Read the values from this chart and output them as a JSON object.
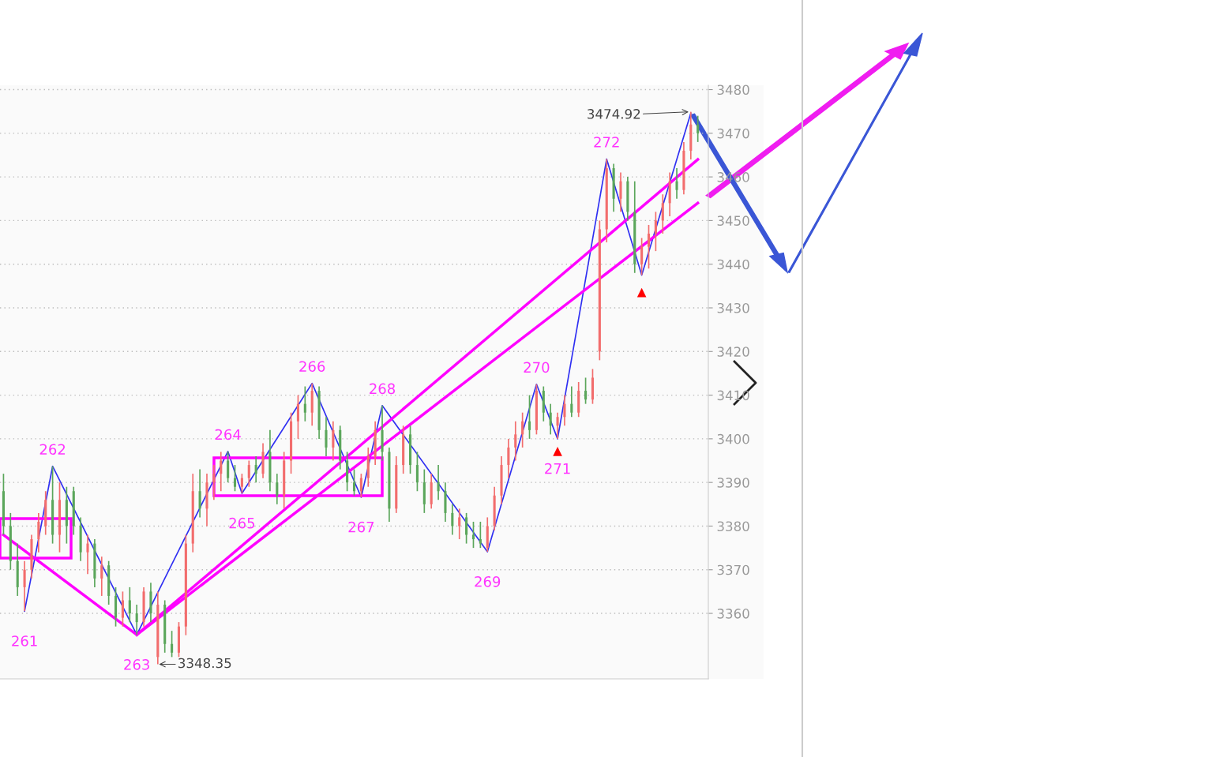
{
  "chart_data": {
    "type": "candlestick",
    "categories": [
      null,
      null,
      null,
      null,
      null,
      null,
      null,
      null,
      null,
      null,
      null,
      null,
      null,
      null,
      null,
      null,
      null,
      null,
      null,
      null,
      null,
      null,
      null,
      null,
      null,
      null,
      null,
      null,
      null,
      null,
      null,
      null,
      null,
      null,
      null,
      null,
      null,
      null,
      null,
      null,
      null,
      null,
      null,
      null,
      null,
      null,
      null,
      null,
      null,
      null,
      null,
      null,
      null,
      null,
      null,
      null,
      null,
      null,
      null,
      null,
      null,
      null,
      null,
      null,
      null,
      null,
      null,
      null,
      null,
      null,
      null,
      null,
      null,
      null,
      null,
      null,
      null,
      null,
      null,
      null,
      null,
      null,
      null,
      null,
      null,
      null,
      null,
      null,
      null,
      null,
      null,
      null,
      null,
      null,
      null,
      null,
      null,
      null,
      null,
      null
    ],
    "ohlc": [
      [
        3388,
        3392,
        3378,
        3380
      ],
      [
        3380,
        3383,
        3370,
        3372
      ],
      [
        3372,
        3376,
        3364,
        3366
      ],
      [
        3366,
        3372,
        3360.5,
        3370
      ],
      [
        3370,
        3378,
        3368,
        3377
      ],
      [
        3377,
        3383,
        3374,
        3381
      ],
      [
        3380,
        3388,
        3378,
        3386
      ],
      [
        3386,
        3393.7,
        3376,
        3378
      ],
      [
        3378,
        3390,
        3374,
        3386
      ],
      [
        3386,
        3389,
        3376,
        3380
      ],
      [
        3388,
        3389,
        3378,
        3380
      ],
      [
        3380,
        3382,
        3372,
        3374
      ],
      [
        3374,
        3378,
        3369,
        3376
      ],
      [
        3376,
        3377,
        3366,
        3368
      ],
      [
        3368,
        3373,
        3364,
        3371
      ],
      [
        3371,
        3372,
        3362,
        3364
      ],
      [
        3364,
        3366,
        3357,
        3359
      ],
      [
        3359,
        3365,
        3357,
        3363
      ],
      [
        3363,
        3366,
        3358,
        3360
      ],
      [
        3360,
        3362,
        3355.1,
        3358
      ],
      [
        3358,
        3366,
        3357,
        3365
      ],
      [
        3365,
        3367,
        3358,
        3360
      ],
      [
        3350,
        3365,
        3348.35,
        3362
      ],
      [
        3362,
        3363,
        3351,
        3353
      ],
      [
        3353,
        3356,
        3350,
        3351
      ],
      [
        3351,
        3358,
        3350,
        3357
      ],
      [
        3357,
        3378,
        3355,
        3376
      ],
      [
        3376,
        3392,
        3374,
        3388
      ],
      [
        3388,
        3393,
        3382,
        3384
      ],
      [
        3384,
        3392,
        3380,
        3390
      ],
      [
        3390,
        3394,
        3386,
        3392
      ],
      [
        3392,
        3397,
        3388,
        3395
      ],
      [
        3395,
        3397.1,
        3390,
        3391
      ],
      [
        3391,
        3394,
        3388,
        3389
      ],
      [
        3389,
        3392,
        3387.5,
        3391
      ],
      [
        3391,
        3395,
        3389,
        3394
      ],
      [
        3394,
        3396,
        3390,
        3392
      ],
      [
        3392,
        3399,
        3391,
        3397
      ],
      [
        3397,
        3402,
        3388,
        3390
      ],
      [
        3390,
        3392,
        3385,
        3387
      ],
      [
        3387,
        3397,
        3384,
        3395
      ],
      [
        3395,
        3406,
        3392,
        3404
      ],
      [
        3404,
        3410,
        3400,
        3408
      ],
      [
        3408,
        3412,
        3404,
        3406
      ],
      [
        3406,
        3412.7,
        3403,
        3411
      ],
      [
        3411,
        3412,
        3400,
        3402
      ],
      [
        3402,
        3405,
        3396,
        3398
      ],
      [
        3398,
        3404,
        3395,
        3402
      ],
      [
        3402,
        3403,
        3393,
        3395
      ],
      [
        3395,
        3397,
        3388,
        3390
      ],
      [
        3390,
        3393,
        3387,
        3388
      ],
      [
        3388,
        3392,
        3386.6,
        3391
      ],
      [
        3391,
        3398,
        3389,
        3396
      ],
      [
        3396,
        3404,
        3394,
        3402
      ],
      [
        3402,
        3407.6,
        3395,
        3397
      ],
      [
        3397,
        3398,
        3381,
        3384
      ],
      [
        3384,
        3396,
        3383,
        3394
      ],
      [
        3394,
        3403,
        3392,
        3401
      ],
      [
        3401,
        3403,
        3392,
        3394
      ],
      [
        3394,
        3397,
        3388,
        3390
      ],
      [
        3390,
        3393,
        3383,
        3385
      ],
      [
        3385,
        3392,
        3384,
        3390
      ],
      [
        3390,
        3394,
        3386,
        3388
      ],
      [
        3388,
        3390,
        3381,
        3383
      ],
      [
        3383,
        3385,
        3378,
        3380
      ],
      [
        3380,
        3384,
        3377,
        3382
      ],
      [
        3382,
        3383,
        3376,
        3378
      ],
      [
        3378,
        3381,
        3375,
        3377
      ],
      [
        3377,
        3381,
        3375,
        3376
      ],
      [
        3375,
        3382,
        3374.1,
        3380
      ],
      [
        3380,
        3389,
        3379,
        3387
      ],
      [
        3387,
        3396,
        3385,
        3394
      ],
      [
        3394,
        3400,
        3391,
        3398
      ],
      [
        3398,
        3404,
        3395,
        3401
      ],
      [
        3401,
        3406,
        3398,
        3404
      ],
      [
        3404,
        3410,
        3400,
        3402
      ],
      [
        3402,
        3412.5,
        3401,
        3411
      ],
      [
        3411,
        3412,
        3404,
        3406
      ],
      [
        3406,
        3408,
        3401,
        3403
      ],
      [
        3403,
        3406,
        3400,
        3405
      ],
      [
        3405,
        3410,
        3403,
        3408
      ],
      [
        3408,
        3412,
        3405,
        3406
      ],
      [
        3406,
        3413,
        3405,
        3411
      ],
      [
        3411,
        3414,
        3408,
        3409
      ],
      [
        3409,
        3416,
        3408,
        3414
      ],
      [
        3420,
        3450,
        3418,
        3448
      ],
      [
        3448,
        3464.1,
        3445,
        3462
      ],
      [
        3462,
        3463,
        3452,
        3455
      ],
      [
        3455,
        3461,
        3452,
        3459
      ],
      [
        3459,
        3460,
        3450,
        3452
      ],
      [
        3452,
        3459,
        3438,
        3440
      ],
      [
        3440,
        3446,
        3437.5,
        3444
      ],
      [
        3444,
        3449,
        3439,
        3447
      ],
      [
        3447,
        3452,
        3443,
        3450
      ],
      [
        3450,
        3456,
        3447,
        3454
      ],
      [
        3454,
        3461,
        3451,
        3459
      ],
      [
        3459,
        3462,
        3455,
        3457
      ],
      [
        3457,
        3468,
        3456,
        3466
      ],
      [
        3466,
        3474.92,
        3464,
        3472
      ],
      [
        3472,
        3474,
        3468,
        3470
      ]
    ],
    "colors": [
      "#5ba65b",
      "#5ba65b",
      "#5ba65b",
      "#f26d6d",
      "#f26d6d",
      "#f26d6d",
      "#f26d6d",
      "#5ba65b",
      "#f26d6d",
      "#5ba65b",
      "#5ba65b",
      "#5ba65b",
      "#f26d6d",
      "#5ba65b",
      "#f26d6d",
      "#5ba65b",
      "#5ba65b",
      "#f26d6d",
      "#5ba65b",
      "#5ba65b",
      "#f26d6d",
      "#5ba65b",
      "#f26d6d",
      "#5ba65b",
      "#5ba65b",
      "#f26d6d",
      "#f26d6d",
      "#f26d6d",
      "#5ba65b",
      "#f26d6d",
      "#f26d6d",
      "#f26d6d",
      "#5ba65b",
      "#5ba65b",
      "#f26d6d",
      "#f26d6d",
      "#5ba65b",
      "#f26d6d",
      "#5ba65b",
      "#5ba65b",
      "#f26d6d",
      "#f26d6d",
      "#f26d6d",
      "#5ba65b",
      "#f26d6d",
      "#5ba65b",
      "#5ba65b",
      "#f26d6d",
      "#5ba65b",
      "#5ba65b",
      "#5ba65b",
      "#f26d6d",
      "#f26d6d",
      "#f26d6d",
      "#5ba65b",
      "#5ba65b",
      "#f26d6d",
      "#f26d6d",
      "#5ba65b",
      "#5ba65b",
      "#5ba65b",
      "#f26d6d",
      "#5ba65b",
      "#5ba65b",
      "#5ba65b",
      "#f26d6d",
      "#5ba65b",
      "#5ba65b",
      "#5ba65b",
      "#f26d6d",
      "#f26d6d",
      "#f26d6d",
      "#f26d6d",
      "#f26d6d",
      "#f26d6d",
      "#5ba65b",
      "#f26d6d",
      "#5ba65b",
      "#5ba65b",
      "#f26d6d",
      "#f26d6d",
      "#5ba65b",
      "#f26d6d",
      "#5ba65b",
      "#f26d6d",
      "#f26d6d",
      "#f26d6d",
      "#5ba65b",
      "#f26d6d",
      "#5ba65b",
      "#5ba65b",
      "#f26d6d",
      "#f26d6d",
      "#f26d6d",
      "#f26d6d",
      "#f26d6d",
      "#5ba65b",
      "#f26d6d",
      "#f26d6d",
      "#5ba65b"
    ],
    "series": [
      {
        "type": "line",
        "color": "#2f2ff2",
        "values": [
          null,
          null,
          null,
          3360.5,
          null,
          null,
          null,
          3393.7,
          null,
          null,
          null,
          null,
          null,
          null,
          null,
          null,
          null,
          null,
          null,
          3355.1,
          null,
          null,
          null,
          null,
          null,
          null,
          null,
          null,
          null,
          null,
          null,
          null,
          3397.1,
          null,
          3387.5,
          null,
          null,
          null,
          null,
          null,
          null,
          null,
          null,
          null,
          3412.7,
          null,
          null,
          null,
          null,
          null,
          null,
          3386.6,
          null,
          null,
          3407.6,
          null,
          null,
          null,
          null,
          null,
          null,
          null,
          null,
          null,
          null,
          null,
          null,
          null,
          null,
          3374.1,
          null,
          null,
          null,
          null,
          null,
          null,
          3412.5,
          null,
          null,
          3400,
          null,
          null,
          null,
          null,
          null,
          null,
          3464.1,
          null,
          null,
          null,
          null,
          3437.5,
          null,
          null,
          null,
          null,
          null,
          null,
          3474.6,
          null
        ]
      },
      {
        "type": "line",
        "color": "#ff00ff",
        "values": [
          3378.0,
          null,
          null,
          null,
          null,
          null,
          null,
          null,
          null,
          null,
          null,
          null,
          null,
          null,
          null,
          null,
          null,
          null,
          null,
          3355.1,
          null,
          null,
          null,
          null,
          null,
          null,
          null,
          null,
          null,
          null,
          null,
          null,
          null,
          null,
          null,
          null,
          null,
          null,
          null,
          null,
          null,
          null,
          null,
          null,
          null,
          null,
          null,
          null,
          null,
          null,
          null,
          null,
          null,
          null,
          null,
          null,
          null,
          null,
          null,
          null,
          null,
          null,
          null,
          null,
          null,
          null,
          null,
          null,
          null,
          null,
          null,
          null,
          null,
          null,
          null,
          null,
          null,
          null,
          null,
          null,
          null,
          null,
          null,
          null,
          null,
          null,
          null,
          null,
          null,
          null,
          null,
          null,
          null,
          null,
          null,
          null,
          null,
          null,
          null,
          null
        ]
      },
      {
        "type": "line",
        "color": "#ff00ff",
        "values": [
          null,
          null,
          null,
          null,
          null,
          null,
          null,
          null,
          null,
          null,
          null,
          null,
          null,
          null,
          null,
          null,
          null,
          null,
          null,
          3355.1,
          null,
          null,
          null,
          null,
          null,
          null,
          null,
          null,
          null,
          null,
          null,
          null,
          null,
          null,
          null,
          null,
          null,
          null,
          null,
          null,
          null,
          null,
          null,
          null,
          null,
          null,
          null,
          null,
          null,
          null,
          null,
          null,
          null,
          null,
          null,
          null,
          null,
          null,
          null,
          null,
          null,
          null,
          null,
          null,
          null,
          null,
          null,
          null,
          null,
          null,
          null,
          null,
          null,
          null,
          null,
          null,
          null,
          null,
          null,
          null,
          null,
          null,
          null,
          null,
          null,
          null,
          null,
          null,
          null,
          null,
          null,
          null,
          null,
          null,
          null,
          null,
          null,
          null,
          null,
          3464.0
        ]
      },
      {
        "type": "line",
        "color": "#ff00ff",
        "values": [
          null,
          null,
          null,
          null,
          null,
          null,
          null,
          null,
          null,
          null,
          null,
          null,
          null,
          null,
          null,
          null,
          null,
          null,
          null,
          3355.1,
          null,
          null,
          null,
          null,
          null,
          null,
          null,
          null,
          null,
          null,
          null,
          null,
          null,
          null,
          null,
          null,
          null,
          null,
          null,
          null,
          null,
          null,
          null,
          null,
          null,
          null,
          null,
          null,
          null,
          null,
          null,
          null,
          null,
          null,
          null,
          null,
          null,
          null,
          null,
          null,
          null,
          null,
          null,
          null,
          null,
          null,
          null,
          null,
          null,
          null,
          null,
          null,
          null,
          null,
          null,
          null,
          null,
          null,
          null,
          null,
          null,
          null,
          null,
          null,
          null,
          null,
          null,
          null,
          null,
          null,
          null,
          null,
          null,
          null,
          null,
          null,
          null,
          null,
          null,
          3454.0
        ]
      },
      {
        "type": "scatter",
        "color": "#ff0000",
        "marker": "triangle",
        "values": [
          null,
          null,
          null,
          null,
          null,
          null,
          null,
          null,
          null,
          null,
          null,
          null,
          null,
          null,
          null,
          null,
          null,
          null,
          null,
          null,
          null,
          null,
          null,
          null,
          null,
          null,
          null,
          null,
          null,
          null,
          null,
          null,
          null,
          null,
          null,
          null,
          null,
          null,
          null,
          null,
          null,
          null,
          null,
          null,
          null,
          null,
          null,
          null,
          null,
          null,
          null,
          null,
          null,
          null,
          null,
          null,
          null,
          null,
          null,
          null,
          null,
          null,
          null,
          null,
          null,
          null,
          null,
          null,
          null,
          null,
          null,
          null,
          null,
          null,
          null,
          null,
          null,
          null,
          null,
          3397.1,
          null,
          null,
          null,
          null,
          null,
          null,
          null,
          null,
          null,
          null,
          null,
          3433.5,
          null,
          null,
          null,
          null,
          null,
          null,
          null,
          null
        ]
      }
    ],
    "annotations": [
      {
        "text": "261",
        "y": 3360.5
      },
      {
        "text": "262",
        "y": 3393.7
      },
      {
        "text": "263",
        "y": 3355.1
      },
      {
        "text": "264",
        "y": 3397.1
      },
      {
        "text": "265",
        "y": 3387.5
      },
      {
        "text": "266",
        "y": 3412.7
      },
      {
        "text": "267",
        "y": 3386.6
      },
      {
        "text": "268",
        "y": 3407.6
      },
      {
        "text": "269",
        "y": 3374.1
      },
      {
        "text": "270",
        "y": 3412.5
      },
      {
        "text": "271",
        "y": 3400
      },
      {
        "text": "272",
        "y": 3464.1
      },
      "3474.92",
      "3348.35"
    ],
    "ylim": [
      3345,
      3481
    ],
    "yticks": [
      3360,
      3370,
      3380,
      3390,
      3400,
      3410,
      3420,
      3430,
      3440,
      3450,
      3460,
      3470,
      3480
    ],
    "grid": "y",
    "tick_labels": "y"
  }
}
